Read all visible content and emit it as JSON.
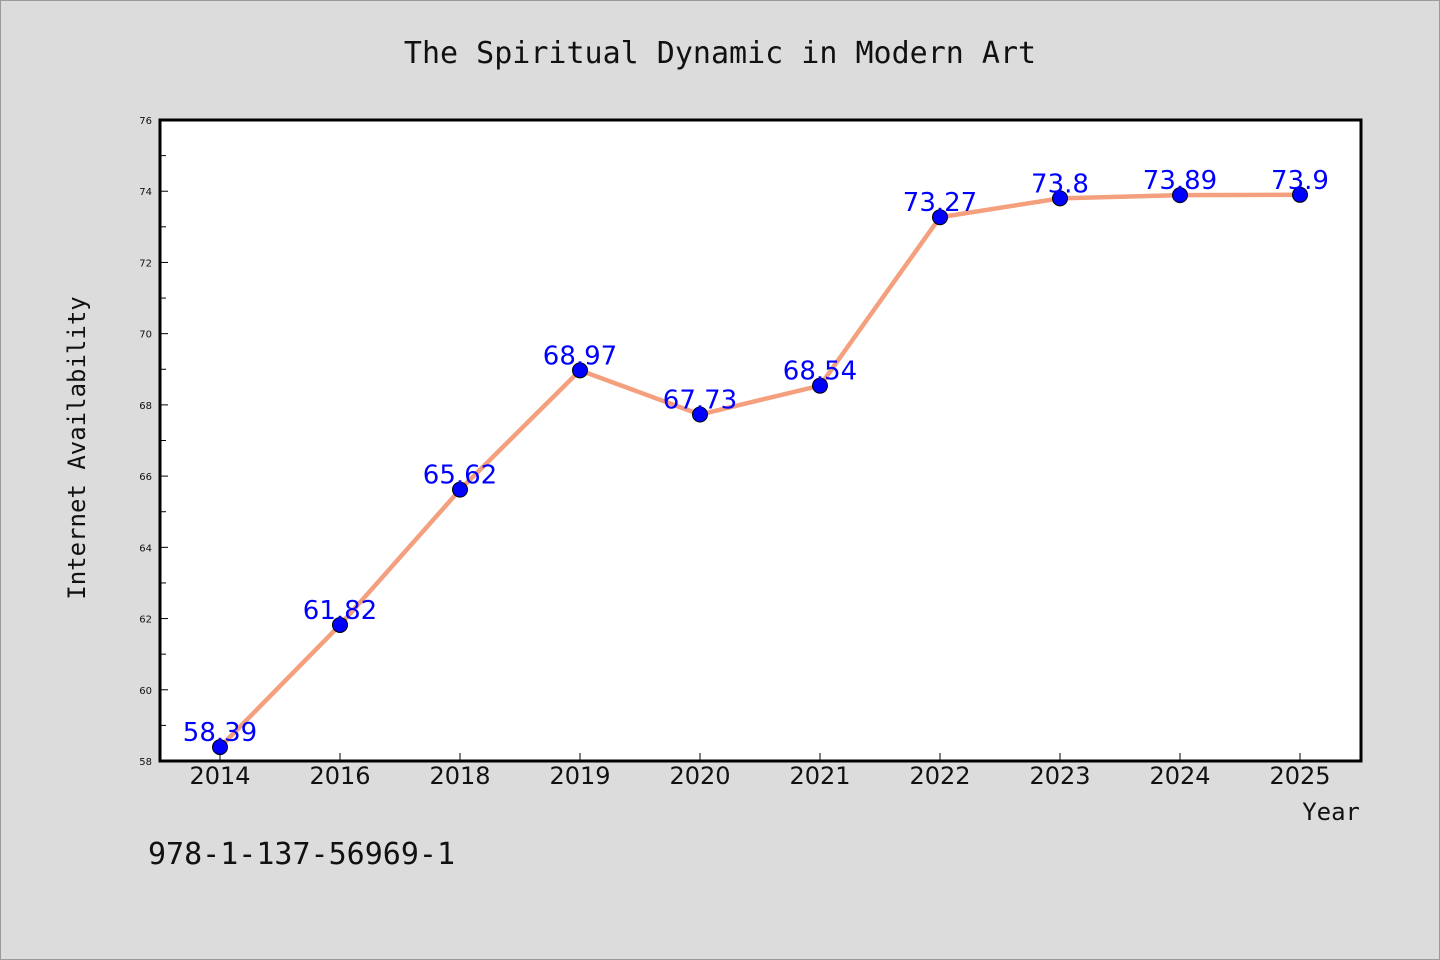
{
  "chart_data": {
    "type": "line",
    "title": "The Spiritual Dynamic in Modern Art",
    "xlabel": "Year",
    "ylabel": "Internet Availability",
    "categories": [
      "2014",
      "2016",
      "2018",
      "2019",
      "2020",
      "2021",
      "2022",
      "2023",
      "2024",
      "2025"
    ],
    "series": [
      {
        "values": [
          58.39,
          61.82,
          65.62,
          68.97,
          67.73,
          68.54,
          73.27,
          73.8,
          73.89,
          73.9
        ],
        "data_labels": [
          "58.39",
          "61.82",
          "65.62",
          "68.97",
          "67.73",
          "68.54",
          "73.27",
          "73.8",
          "73.89",
          "73.9"
        ],
        "line_color": "#f4a07e",
        "marker_color": "#0000ff"
      }
    ],
    "ylim": [
      58,
      76
    ],
    "yticks": [
      58,
      60,
      62,
      64,
      66,
      68,
      70,
      72,
      74,
      76
    ],
    "grid": false,
    "legend": "none"
  },
  "footer": {
    "text": "978-1-137-56969-1"
  },
  "colors": {
    "background": "#dcdcdc",
    "plot_area": "#ffffff",
    "label_color": "#0000ff"
  }
}
